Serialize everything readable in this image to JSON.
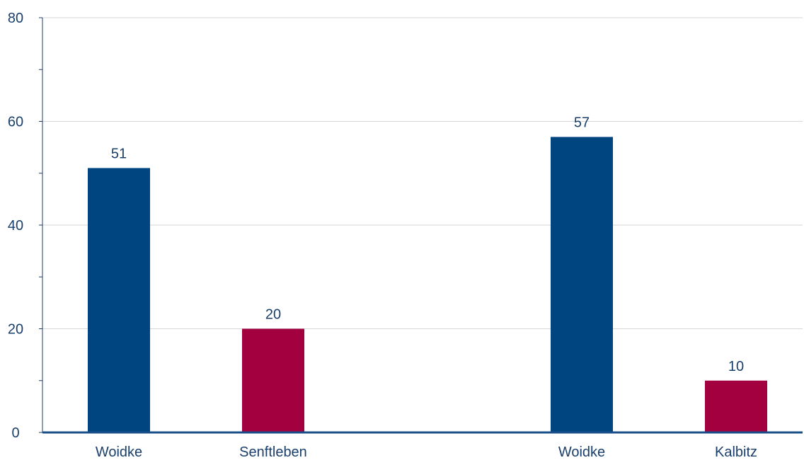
{
  "chart_data": {
    "type": "bar",
    "title": "",
    "xlabel": "",
    "ylabel": "",
    "ylim": [
      0,
      80
    ],
    "yticks": [
      0,
      20,
      40,
      60,
      80
    ],
    "grid": true,
    "categories": [
      "Woidke",
      "Senftleben",
      "Woidke",
      "Kalbitz"
    ],
    "values": [
      51,
      20,
      57,
      10
    ],
    "colors": [
      "#004480",
      "#a3003f",
      "#004480",
      "#a3003f"
    ],
    "data_labels": [
      "51",
      "20",
      "57",
      "10"
    ]
  }
}
